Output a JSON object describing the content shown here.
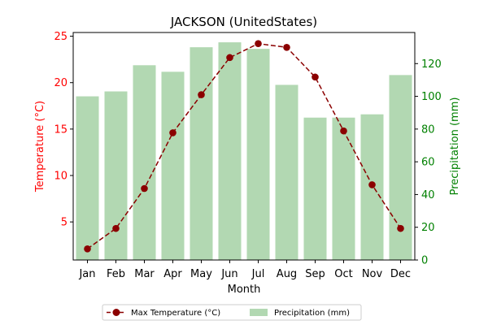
{
  "chart_data": {
    "type": "bar+line",
    "title": "JACKSON (UnitedStates)",
    "xlabel": "Month",
    "ylabel_left": "Temperature (°C)",
    "ylabel_right": "Precipitation (mm)",
    "categories": [
      "Jan",
      "Feb",
      "Mar",
      "Apr",
      "May",
      "Jun",
      "Jul",
      "Aug",
      "Sep",
      "Oct",
      "Nov",
      "Dec"
    ],
    "series": [
      {
        "name": "Max Temperature (°C)",
        "kind": "line",
        "axis": "left",
        "color": "#8b0000",
        "values": [
          2.1,
          4.3,
          8.6,
          14.6,
          18.7,
          22.7,
          24.2,
          23.8,
          20.6,
          14.8,
          9.0,
          4.3
        ]
      },
      {
        "name": "Precipitation (mm)",
        "kind": "bar",
        "axis": "right",
        "color": "#b2d8b2",
        "values": [
          100,
          103,
          119,
          115,
          130,
          133,
          129,
          107,
          87,
          87,
          89,
          113
        ]
      }
    ],
    "ylim_left": [
      0.9,
      25.4
    ],
    "yticks_left": [
      5,
      10,
      15,
      20,
      25
    ],
    "ylim_right": [
      0,
      139
    ],
    "yticks_right": [
      0,
      20,
      40,
      60,
      80,
      100,
      120
    ],
    "left_axis_color": "#ff0000",
    "right_axis_color": "#008000",
    "legend_position": "bottom-center"
  }
}
